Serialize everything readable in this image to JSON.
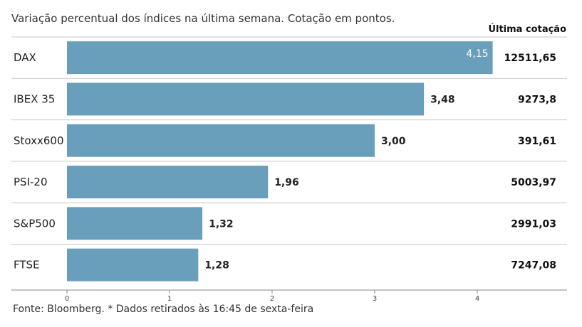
{
  "subtitle": "Variação percentual dos índices na última semana. Cotação em pontos.",
  "last_quote_header": "Última cotação",
  "source_note": "Fonte: Bloomberg.  * Dados retirados às 16:45 de sexta-feira",
  "colors": {
    "bar": "#6a9fbb",
    "row_line": "#c8c8c8",
    "axis": "#888888"
  },
  "chart_data": {
    "type": "bar",
    "orientation": "horizontal",
    "categories": [
      "DAX",
      "IBEX 35",
      "Stoxx600",
      "PSI-20",
      "S&P500",
      "FTSE"
    ],
    "values": [
      4.15,
      3.48,
      3.0,
      1.96,
      1.32,
      1.28
    ],
    "value_labels": [
      "4,15",
      "3,48",
      "3,00",
      "1,96",
      "1,32",
      "1,28"
    ],
    "last_quote": [
      "12511,65",
      "9273,8",
      "391,61",
      "5003,97",
      "2991,03",
      "7247,08"
    ],
    "xlim": [
      0,
      4.5
    ],
    "xticks": [
      0,
      1,
      2,
      3,
      4
    ],
    "xtick_labels": [
      "0",
      "1",
      "2",
      "3",
      "4"
    ],
    "grid": false
  }
}
